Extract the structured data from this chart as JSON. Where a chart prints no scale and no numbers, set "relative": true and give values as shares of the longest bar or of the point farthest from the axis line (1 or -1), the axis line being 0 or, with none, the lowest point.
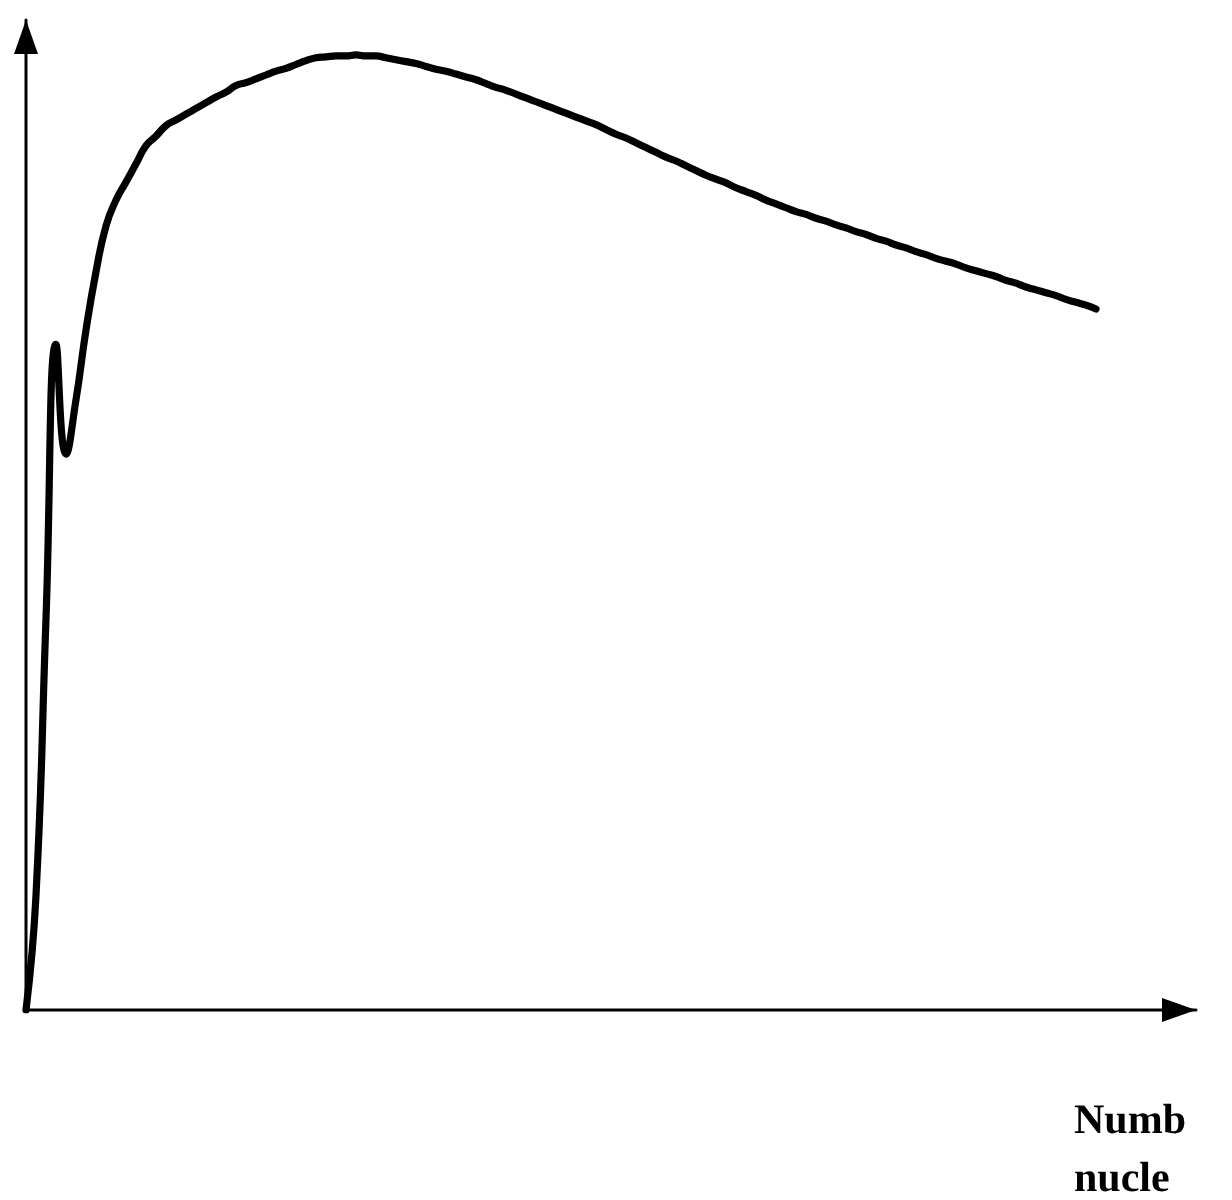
{
  "chart_data": {
    "type": "line",
    "relative": true,
    "xlabel": "Numb nucle",
    "color": "#000000",
    "marker": "none",
    "line_style": "solid",
    "categories": [
      null,
      null,
      null,
      null,
      null,
      null,
      null,
      null,
      null,
      null,
      null,
      null,
      null,
      null,
      null,
      null,
      null,
      null,
      null,
      null,
      null,
      null,
      null,
      null,
      null,
      null,
      null,
      null,
      null,
      null,
      null,
      null,
      null,
      null,
      null,
      null,
      null,
      null,
      null,
      null,
      null,
      null,
      null,
      null,
      null,
      null,
      null,
      null,
      null,
      null,
      null,
      null,
      null,
      null,
      null,
      null,
      null,
      null,
      null,
      null,
      null,
      null,
      null,
      null,
      null,
      null,
      null,
      null,
      null,
      null,
      null,
      null,
      null,
      null,
      null,
      null,
      null,
      null,
      null,
      null,
      null,
      null,
      null,
      null,
      null,
      null,
      null,
      null,
      null,
      null,
      null,
      null,
      null,
      null,
      null,
      null,
      null,
      null,
      null,
      null,
      null,
      null,
      null,
      null,
      null,
      null,
      null,
      null
    ],
    "values": [
      0.0,
      0.12,
      0.41,
      0.697,
      0.582,
      0.639,
      0.712,
      0.773,
      0.821,
      0.848,
      0.867,
      0.886,
      0.905,
      0.915,
      0.926,
      0.932,
      0.938,
      0.944,
      0.95,
      0.956,
      0.961,
      0.968,
      0.971,
      0.975,
      0.979,
      0.983,
      0.986,
      0.99,
      0.994,
      0.997,
      0.998,
      0.999,
      0.999,
      1.0,
      0.999,
      0.999,
      0.997,
      0.995,
      0.993,
      0.991,
      0.988,
      0.985,
      0.983,
      0.98,
      0.977,
      0.974,
      0.97,
      0.966,
      0.963,
      0.959,
      0.955,
      0.951,
      0.947,
      0.943,
      0.939,
      0.935,
      0.931,
      0.927,
      0.922,
      0.917,
      0.913,
      0.908,
      0.903,
      0.898,
      0.893,
      0.889,
      0.884,
      0.879,
      0.874,
      0.87,
      0.866,
      0.861,
      0.857,
      0.853,
      0.848,
      0.844,
      0.84,
      0.836,
      0.833,
      0.829,
      0.826,
      0.822,
      0.819,
      0.815,
      0.812,
      0.808,
      0.805,
      0.801,
      0.798,
      0.794,
      0.791,
      0.787,
      0.784,
      0.781,
      0.777,
      0.774,
      0.771,
      0.768,
      0.764,
      0.761,
      0.757,
      0.754,
      0.751,
      0.748,
      0.744,
      0.741,
      0.738,
      0.734
    ]
  }
}
